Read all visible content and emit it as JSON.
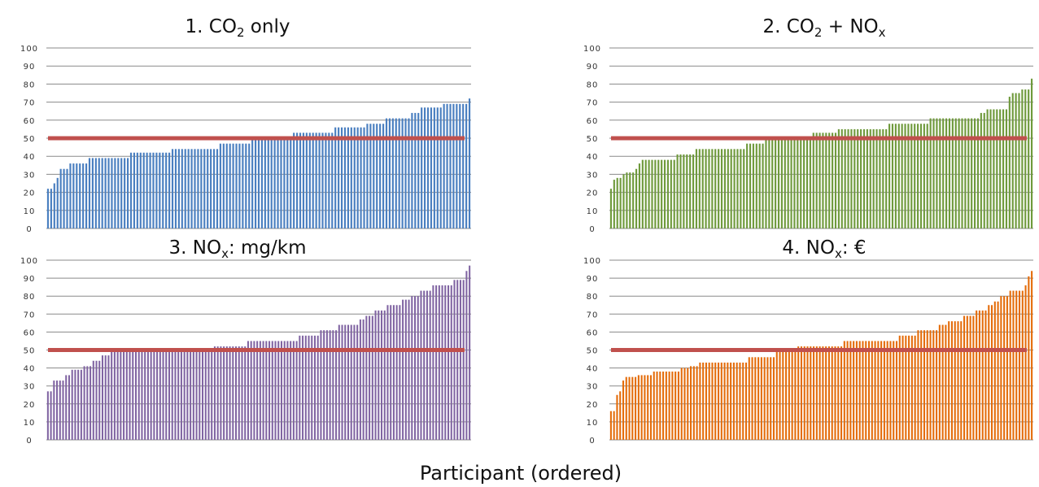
{
  "figure": {
    "xlabel": "Participant (ordered)"
  },
  "chart_data": [
    {
      "type": "bar",
      "title": {
        "main": "1. CO",
        "sub": "2",
        "rest": " only"
      },
      "color": "#4a7fc0",
      "ylim": [
        0,
        100
      ],
      "yticks": [
        0,
        10,
        20,
        30,
        40,
        50,
        60,
        70,
        80,
        90,
        100
      ],
      "reference_line": 50,
      "reference_color": "#c0504d",
      "values": [
        22,
        22,
        25,
        28,
        33,
        33,
        33,
        36,
        36,
        36,
        36,
        36,
        36,
        39,
        39,
        39,
        39,
        39,
        39,
        39,
        39,
        39,
        39,
        39,
        39,
        39,
        42,
        42,
        42,
        42,
        42,
        42,
        42,
        42,
        42,
        42,
        42,
        42,
        42,
        44,
        44,
        44,
        44,
        44,
        44,
        44,
        44,
        44,
        44,
        44,
        44,
        44,
        44,
        44,
        47,
        47,
        47,
        47,
        47,
        47,
        47,
        47,
        47,
        47,
        50,
        50,
        50,
        50,
        50,
        50,
        50,
        50,
        50,
        50,
        50,
        50,
        50,
        53,
        53,
        53,
        53,
        53,
        53,
        53,
        53,
        53,
        53,
        53,
        53,
        53,
        56,
        56,
        56,
        56,
        56,
        56,
        56,
        56,
        56,
        56,
        58,
        58,
        58,
        58,
        58,
        58,
        61,
        61,
        61,
        61,
        61,
        61,
        61,
        61,
        64,
        64,
        64,
        67,
        67,
        67,
        67,
        67,
        67,
        67,
        69,
        69,
        69,
        69,
        69,
        69,
        69,
        69,
        72
      ]
    },
    {
      "type": "bar",
      "title": {
        "main": "2. CO",
        "sub": "2",
        "rest": " + NO",
        "sub2": "x"
      },
      "color": "#6f9a3c",
      "ylim": [
        0,
        100
      ],
      "yticks": [
        0,
        10,
        20,
        30,
        40,
        50,
        60,
        70,
        80,
        90,
        100
      ],
      "reference_line": 50,
      "reference_color": "#c0504d",
      "values": [
        22,
        27,
        28,
        28,
        30,
        31,
        31,
        31,
        33,
        36,
        38,
        38,
        38,
        38,
        38,
        38,
        38,
        38,
        38,
        38,
        38,
        41,
        41,
        41,
        41,
        41,
        41,
        44,
        44,
        44,
        44,
        44,
        44,
        44,
        44,
        44,
        44,
        44,
        44,
        44,
        44,
        44,
        44,
        47,
        47,
        47,
        47,
        47,
        47,
        50,
        50,
        50,
        50,
        50,
        50,
        50,
        50,
        50,
        50,
        50,
        50,
        50,
        50,
        50,
        53,
        53,
        53,
        53,
        53,
        53,
        53,
        53,
        55,
        55,
        55,
        55,
        55,
        55,
        55,
        55,
        55,
        55,
        55,
        55,
        55,
        55,
        55,
        55,
        58,
        58,
        58,
        58,
        58,
        58,
        58,
        58,
        58,
        58,
        58,
        58,
        58,
        61,
        61,
        61,
        61,
        61,
        61,
        61,
        61,
        61,
        61,
        61,
        61,
        61,
        61,
        61,
        61,
        64,
        64,
        66,
        66,
        66,
        66,
        66,
        66,
        66,
        73,
        75,
        75,
        75,
        77,
        77,
        77,
        83
      ]
    },
    {
      "type": "bar",
      "title": {
        "main": "3. NO",
        "sub": "x",
        "rest": ": mg/km"
      },
      "color": "#8064a2",
      "ylim": [
        0,
        100
      ],
      "yticks": [
        0,
        10,
        20,
        30,
        40,
        50,
        60,
        70,
        80,
        90,
        100
      ],
      "reference_line": 50,
      "reference_color": "#c0504d",
      "values": [
        27,
        27,
        33,
        33,
        33,
        33,
        36,
        36,
        39,
        39,
        39,
        39,
        41,
        41,
        41,
        44,
        44,
        44,
        47,
        47,
        47,
        50,
        50,
        50,
        50,
        50,
        50,
        50,
        50,
        50,
        50,
        50,
        50,
        50,
        50,
        50,
        50,
        50,
        50,
        50,
        50,
        50,
        50,
        50,
        50,
        50,
        50,
        50,
        50,
        50,
        50,
        50,
        50,
        50,
        50,
        52,
        52,
        52,
        52,
        52,
        52,
        52,
        52,
        52,
        52,
        52,
        55,
        55,
        55,
        55,
        55,
        55,
        55,
        55,
        55,
        55,
        55,
        55,
        55,
        55,
        55,
        55,
        55,
        58,
        58,
        58,
        58,
        58,
        58,
        58,
        61,
        61,
        61,
        61,
        61,
        61,
        64,
        64,
        64,
        64,
        64,
        64,
        64,
        67,
        67,
        69,
        69,
        69,
        72,
        72,
        72,
        72,
        75,
        75,
        75,
        75,
        75,
        78,
        78,
        78,
        80,
        80,
        80,
        83,
        83,
        83,
        83,
        86,
        86,
        86,
        86,
        86,
        86,
        86,
        89,
        89,
        89,
        89,
        94,
        97
      ]
    },
    {
      "type": "bar",
      "title": {
        "main": "4. NO",
        "sub": "x",
        "rest": ": €"
      },
      "color": "#e46c0a",
      "ylim": [
        0,
        100
      ],
      "yticks": [
        0,
        10,
        20,
        30,
        40,
        50,
        60,
        70,
        80,
        90,
        100
      ],
      "reference_line": 50,
      "reference_color": "#c0504d",
      "values": [
        16,
        16,
        25,
        27,
        33,
        35,
        35,
        35,
        35,
        36,
        36,
        36,
        36,
        36,
        38,
        38,
        38,
        38,
        38,
        38,
        38,
        38,
        38,
        40,
        40,
        40,
        41,
        41,
        41,
        43,
        43,
        43,
        43,
        43,
        43,
        43,
        43,
        43,
        43,
        43,
        43,
        43,
        43,
        43,
        43,
        46,
        46,
        46,
        46,
        46,
        46,
        46,
        46,
        46,
        49,
        49,
        49,
        49,
        49,
        49,
        49,
        52,
        52,
        52,
        52,
        52,
        52,
        52,
        52,
        52,
        52,
        52,
        52,
        52,
        52,
        52,
        55,
        55,
        55,
        55,
        55,
        55,
        55,
        55,
        55,
        55,
        55,
        55,
        55,
        55,
        55,
        55,
        55,
        55,
        58,
        58,
        58,
        58,
        58,
        58,
        61,
        61,
        61,
        61,
        61,
        61,
        61,
        64,
        64,
        64,
        66,
        66,
        66,
        66,
        66,
        69,
        69,
        69,
        69,
        72,
        72,
        72,
        72,
        75,
        75,
        77,
        77,
        80,
        80,
        80,
        83,
        83,
        83,
        83,
        83,
        86,
        91,
        94
      ]
    }
  ]
}
